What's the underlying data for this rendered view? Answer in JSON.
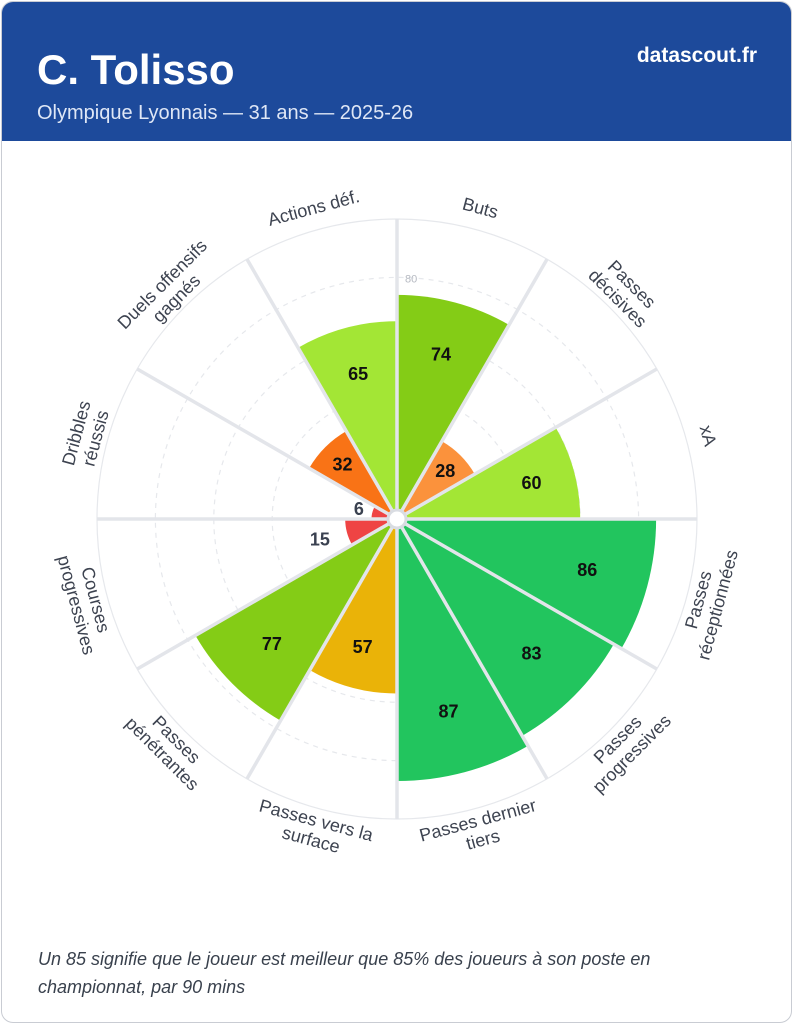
{
  "header": {
    "player_name": "C. Tolisso",
    "subtitle": "Olympique Lyonnais — 31 ans — 2025-26",
    "brand": "datascout.fr"
  },
  "footnote": "Un 85 signifie que le joueur est meilleur que 85% des joueurs à son poste en championnat, par 90 mins",
  "chart_data": {
    "type": "polar-bar",
    "scale_max": 100,
    "ring_label": "80",
    "categories": [
      {
        "label": "Buts",
        "value": 74,
        "color": "#84cc16"
      },
      {
        "label": "Passes décisives",
        "value": 28,
        "color": "#fb923c"
      },
      {
        "label": "xA",
        "value": 60,
        "color": "#a3e635"
      },
      {
        "label": "Passes réceptionnées",
        "value": 86,
        "color": "#22c55e"
      },
      {
        "label": "Passes progressives",
        "value": 83,
        "color": "#22c55e"
      },
      {
        "label": "Passes dernier tiers",
        "value": 87,
        "color": "#22c55e"
      },
      {
        "label": "Passes vers la surface",
        "value": 57,
        "color": "#eab308"
      },
      {
        "label": "Passes pénétrantes",
        "value": 77,
        "color": "#84cc16"
      },
      {
        "label": "Courses progressives",
        "value": 15,
        "color": "#ef4444"
      },
      {
        "label": "Dribbles réussis",
        "value": 6,
        "color": "#ef4444"
      },
      {
        "label": "Duels offensifs gagnés",
        "value": 32,
        "color": "#f97316"
      },
      {
        "label": "Actions déf.",
        "value": 65,
        "color": "#a3e635"
      }
    ]
  }
}
